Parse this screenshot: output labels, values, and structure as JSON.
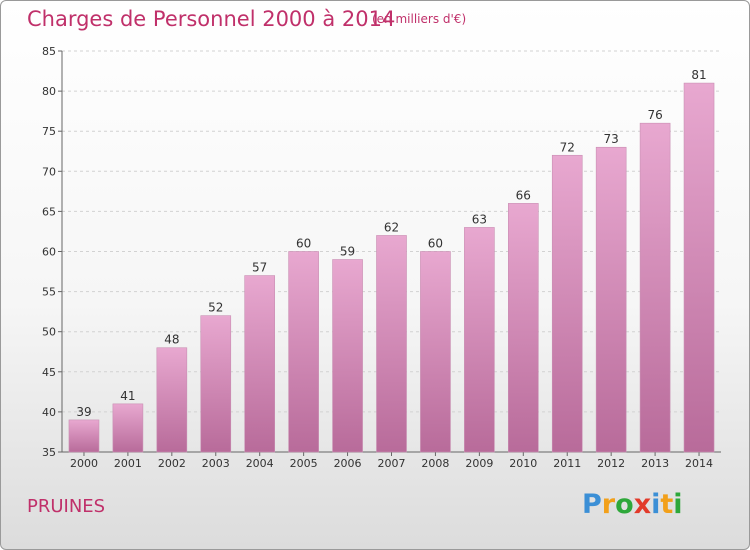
{
  "title": "Charges de Personnel 2000 à 2014",
  "subtitle": "(en milliers d'€)",
  "commune": "PRUINES",
  "logo": {
    "letters": [
      "P",
      "r",
      "o",
      "x",
      "i",
      "t",
      "i"
    ],
    "colors": [
      "#3b8fd6",
      "#f2a01a",
      "#2ea83a",
      "#e23a2a",
      "#3b8fd6",
      "#f2a01a",
      "#2ea83a"
    ]
  },
  "colors": {
    "bar_top": "#e8a8d0",
    "bar_bottom": "#b86b9a",
    "text_accent": "#c0306a"
  },
  "chart_data": {
    "type": "bar",
    "title": "Charges de Personnel 2000 à 2014",
    "subtitle": "(en milliers d'€)",
    "categories": [
      "2000",
      "2001",
      "2002",
      "2003",
      "2004",
      "2005",
      "2006",
      "2007",
      "2008",
      "2009",
      "2010",
      "2011",
      "2012",
      "2013",
      "2014"
    ],
    "values": [
      39,
      41,
      48,
      52,
      57,
      60,
      59,
      62,
      60,
      63,
      66,
      72,
      73,
      76,
      81
    ],
    "ylim": [
      35,
      85
    ],
    "yticks": [
      35,
      40,
      45,
      50,
      55,
      60,
      65,
      70,
      75,
      80,
      85
    ],
    "grid": true,
    "data_labels": true
  }
}
